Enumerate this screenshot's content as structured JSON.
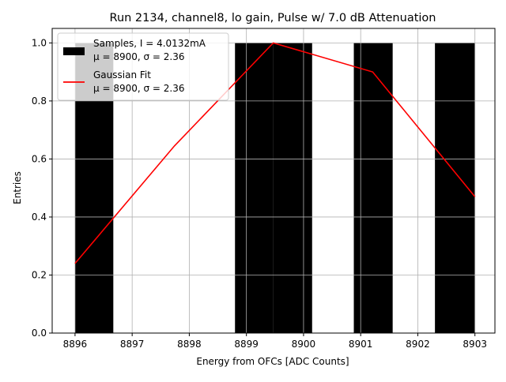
{
  "chart_data": {
    "type": "bar",
    "title": "Run 2134, channel8, lo gain, Pulse w/ 7.0 dB Attenuation",
    "xlabel": "Energy from OFCs [ADC Counts]",
    "ylabel": "Entries",
    "xlim": [
      8895.6,
      8903.35
    ],
    "ylim": [
      0,
      1.05
    ],
    "xticks": [
      8896,
      8897,
      8898,
      8899,
      8900,
      8901,
      8902,
      8903
    ],
    "yticks": [
      0.0,
      0.2,
      0.4,
      0.6,
      0.8,
      1.0
    ],
    "grid": true,
    "legend_position": "top-left",
    "histogram_bins": [
      {
        "start": 8896.0,
        "end": 8896.67,
        "value": 1
      },
      {
        "start": 8898.8,
        "end": 8899.47,
        "value": 1
      },
      {
        "start": 8899.47,
        "end": 8900.15,
        "value": 1
      },
      {
        "start": 8900.88,
        "end": 8901.56,
        "value": 1
      },
      {
        "start": 8902.3,
        "end": 8903.0,
        "value": 1
      }
    ],
    "fit_line": {
      "x": [
        8896.0,
        8897.74,
        8899.47,
        8901.21,
        8903.0
      ],
      "y": [
        0.24,
        0.645,
        1.0,
        0.9,
        0.47
      ]
    },
    "series": [
      {
        "name": "Samples, I = 4.0132mA",
        "subtitle": "μ = 8900, σ = 2.36",
        "color": "#000000",
        "kind": "histogram"
      },
      {
        "name": "Gaussian Fit",
        "subtitle": "μ = 8900, σ = 2.36",
        "color": "#ff0000",
        "kind": "line"
      }
    ]
  }
}
